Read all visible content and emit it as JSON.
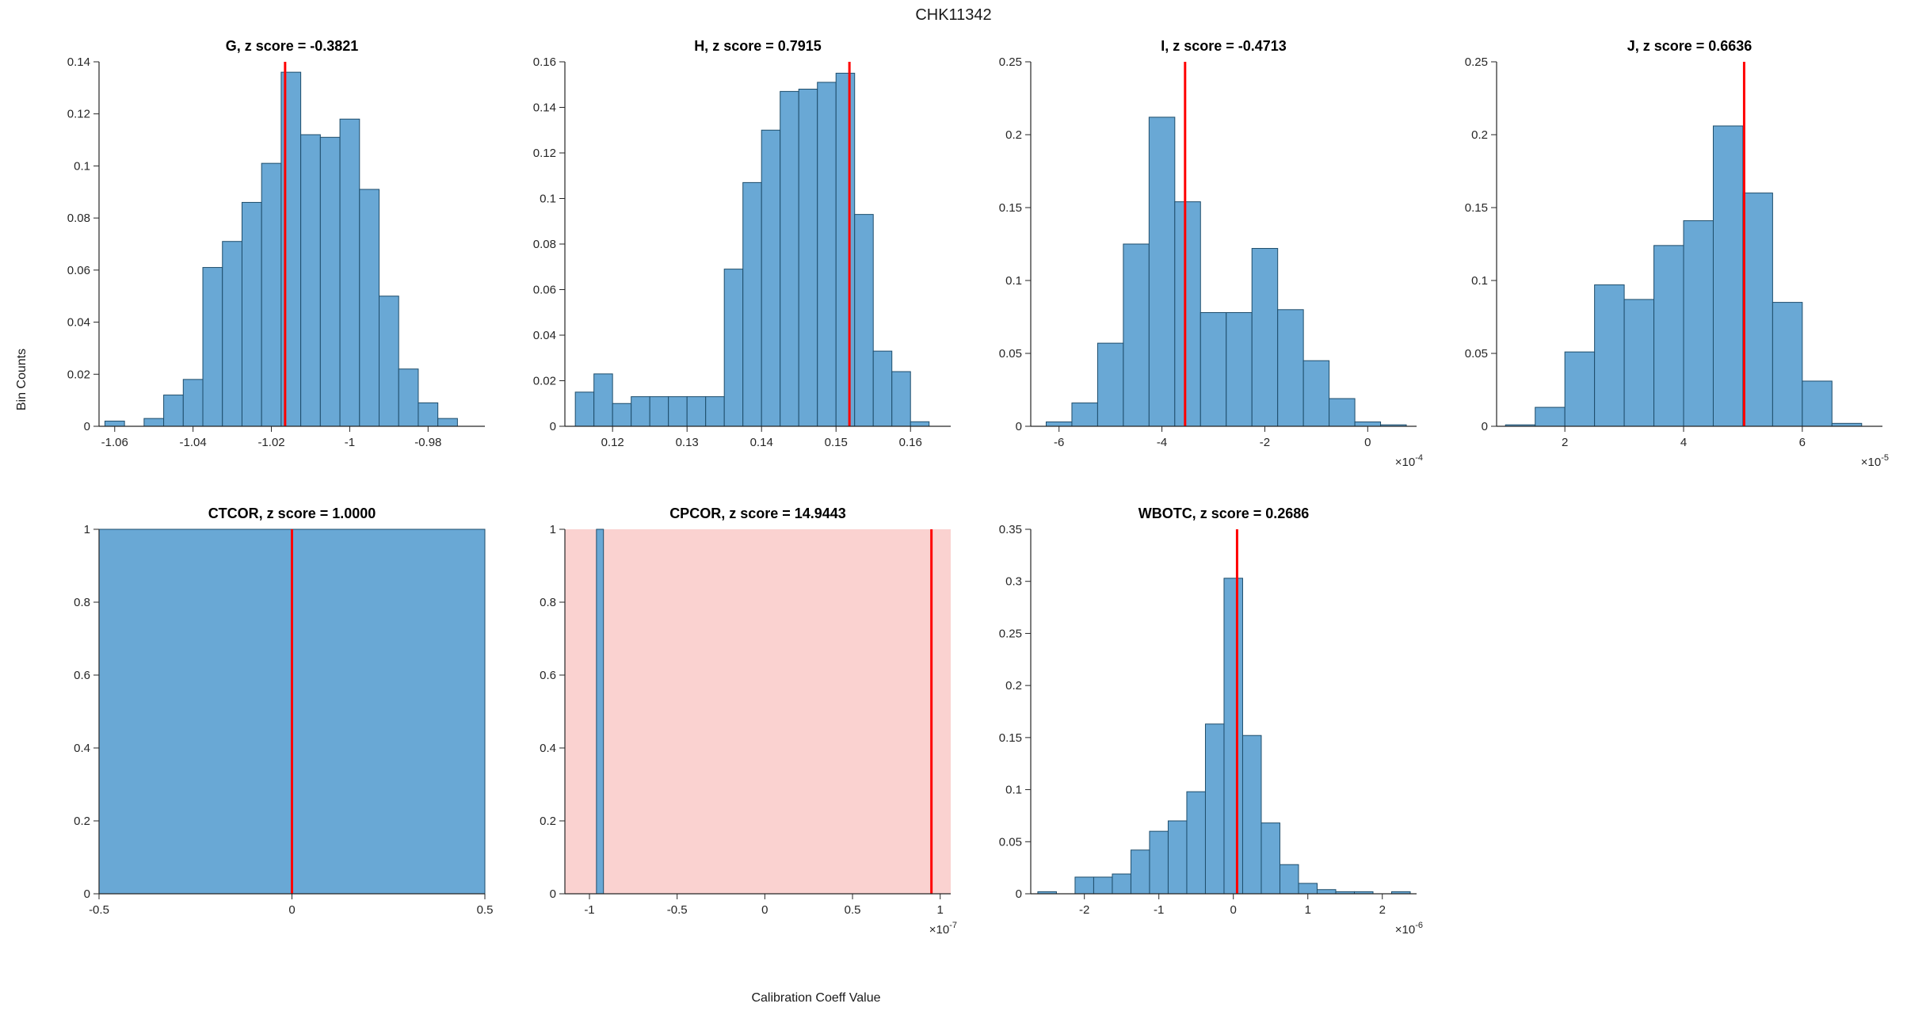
{
  "figure": {
    "title": "CHK11342",
    "ylabel": "Bin Counts",
    "xlabel": "Calibration Coeff Value"
  },
  "colors": {
    "bar_fill": "#69A8D5",
    "bar_edge": "#1E4D6B",
    "marker": "#FF0000",
    "shade": "#FAD2D0",
    "axis": "#262626",
    "text": "#262626",
    "title_text": "#000000"
  },
  "chart_data": [
    {
      "type": "bar",
      "id": "G",
      "title": "G, z score = -0.3821",
      "z_score": -0.3821,
      "bin_start": -1.0625,
      "bin_width": 0.005,
      "values": [
        0.002,
        0,
        0.003,
        0.012,
        0.018,
        0.061,
        0.071,
        0.086,
        0.101,
        0.136,
        0.112,
        0.111,
        0.118,
        0.091,
        0.05,
        0.022,
        0.009,
        0.003
      ],
      "xlim": [
        -1.064,
        -0.9655
      ],
      "ylim": [
        0,
        0.14
      ],
      "ytick_step": 0.02,
      "xticks": [
        -1.06,
        -1.04,
        -1.02,
        -1.0,
        -0.98
      ],
      "xtick_labels": [
        "-1.06",
        "-1.04",
        "-1.02",
        "-1",
        "-0.98"
      ],
      "marker_x": -1.0165,
      "exponent": null
    },
    {
      "type": "bar",
      "id": "H",
      "title": "H, z score = 0.7915",
      "z_score": 0.7915,
      "bin_start": 0.115,
      "bin_width": 0.0025,
      "values": [
        0.015,
        0.023,
        0.01,
        0.013,
        0.013,
        0.013,
        0.013,
        0.013,
        0.069,
        0.107,
        0.13,
        0.147,
        0.148,
        0.151,
        0.155,
        0.093,
        0.033,
        0.024,
        0.002
      ],
      "xlim": [
        0.1136,
        0.1654
      ],
      "ylim": [
        0,
        0.16
      ],
      "ytick_step": 0.02,
      "xticks": [
        0.12,
        0.13,
        0.14,
        0.15,
        0.16
      ],
      "xtick_labels": [
        "0.12",
        "0.13",
        "0.14",
        "0.15",
        "0.16"
      ],
      "marker_x": 0.1518,
      "exponent": null
    },
    {
      "type": "bar",
      "id": "I",
      "title": "I, z score = -0.4713",
      "z_score": -0.4713,
      "bin_start": -0.000625,
      "bin_width": 5e-05,
      "values": [
        0.003,
        0.016,
        0.057,
        0.125,
        0.212,
        0.154,
        0.078,
        0.078,
        0.122,
        0.08,
        0.045,
        0.019,
        0.003,
        0.001
      ],
      "xlim": [
        -0.000655,
        9.5e-05
      ],
      "ylim": [
        0,
        0.25
      ],
      "ytick_step": 0.05,
      "xticks": [
        -0.0006,
        -0.0004,
        -0.0002,
        0
      ],
      "xtick_labels": [
        "-6",
        "-4",
        "-2",
        "0"
      ],
      "marker_x": -0.000355,
      "exponent": "-4"
    },
    {
      "type": "bar",
      "id": "J",
      "title": "J, z score = 0.6636",
      "z_score": 0.6636,
      "bin_start": 1e-05,
      "bin_width": 5e-06,
      "values": [
        0.001,
        0.013,
        0.051,
        0.097,
        0.087,
        0.124,
        0.141,
        0.206,
        0.16,
        0.085,
        0.031,
        0.002
      ],
      "xlim": [
        8.5e-06,
        7.35e-05
      ],
      "ylim": [
        0,
        0.25
      ],
      "ytick_step": 0.05,
      "xticks": [
        2e-05,
        4e-05,
        6e-05
      ],
      "xtick_labels": [
        "2",
        "4",
        "6"
      ],
      "marker_x": 5.02e-05,
      "exponent": "-5"
    },
    {
      "type": "bar",
      "id": "CTCOR",
      "title": "CTCOR, z score = 1.0000",
      "z_score": 1.0,
      "bin_start": -0.5,
      "bin_width": 1.0,
      "values": [
        1
      ],
      "xlim": [
        -0.5,
        0.5
      ],
      "ylim": [
        0,
        1
      ],
      "ytick_step": 0.2,
      "xticks": [
        -0.5,
        0,
        0.5
      ],
      "xtick_labels": [
        "-0.5",
        "0",
        "0.5"
      ],
      "marker_x": 0,
      "exponent": null
    },
    {
      "type": "bar",
      "id": "CPCOR",
      "title": "CPCOR, z score = 14.9443",
      "z_score": 14.9443,
      "bin_start": -9.6e-08,
      "bin_width": 4e-09,
      "values": [
        1
      ],
      "xlim": [
        -1.14e-07,
        1.06e-07
      ],
      "ylim": [
        0,
        1
      ],
      "ytick_step": 0.2,
      "xticks": [
        -1e-07,
        -5e-08,
        0,
        5e-08,
        1e-07
      ],
      "xtick_labels": [
        "-1",
        "-0.5",
        "0",
        "0.5",
        "1"
      ],
      "marker_x": 9.5e-08,
      "shade": [
        -1.14e-07,
        1.06e-07
      ],
      "exponent": "-7"
    },
    {
      "type": "bar",
      "id": "WBOTC",
      "title": "WBOTC, z score = 0.2686",
      "z_score": 0.2686,
      "bin_start": -2.625e-06,
      "bin_width": 2.5e-07,
      "values": [
        0.002,
        0,
        0.016,
        0.016,
        0.019,
        0.042,
        0.06,
        0.07,
        0.098,
        0.163,
        0.303,
        0.152,
        0.068,
        0.028,
        0.01,
        0.004,
        0.002,
        0.002,
        0,
        0.002
      ],
      "xlim": [
        -2.72e-06,
        2.46e-06
      ],
      "ylim": [
        0,
        0.35
      ],
      "ytick_step": 0.05,
      "xticks": [
        -2e-06,
        -1e-06,
        0,
        1e-06,
        2e-06
      ],
      "xtick_labels": [
        "-2",
        "-1",
        "0",
        "1",
        "2"
      ],
      "marker_x": 5e-08,
      "exponent": "-6"
    }
  ]
}
